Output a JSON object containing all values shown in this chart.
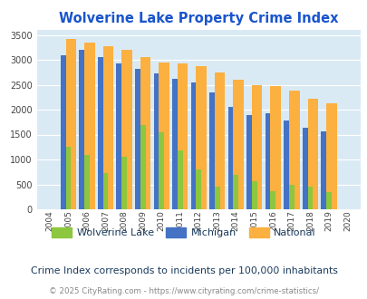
{
  "title": "Wolverine Lake Property Crime Index",
  "years": [
    2004,
    2005,
    2006,
    2007,
    2008,
    2009,
    2010,
    2011,
    2012,
    2013,
    2014,
    2015,
    2016,
    2017,
    2018,
    2019,
    2020
  ],
  "wolverine_lake": [
    0,
    1250,
    1100,
    720,
    1060,
    1700,
    1550,
    1180,
    800,
    450,
    700,
    570,
    370,
    490,
    460,
    340,
    0
  ],
  "michigan": [
    0,
    3100,
    3200,
    3050,
    2930,
    2820,
    2720,
    2620,
    2540,
    2340,
    2050,
    1900,
    1930,
    1790,
    1640,
    1570,
    0
  ],
  "national": [
    0,
    3420,
    3340,
    3270,
    3200,
    3050,
    2950,
    2920,
    2870,
    2740,
    2600,
    2500,
    2480,
    2390,
    2210,
    2120,
    0
  ],
  "bar_width": 0.28,
  "ylim": [
    0,
    3600
  ],
  "yticks": [
    0,
    500,
    1000,
    1500,
    2000,
    2500,
    3000,
    3500
  ],
  "color_wolverine": "#8dc63f",
  "color_michigan": "#4472c4",
  "color_national": "#fbb040",
  "bg_color": "#daeaf5",
  "grid_color": "#ffffff",
  "title_color": "#1a55cc",
  "legend_text_color": "#1a3a5c",
  "subtitle_color": "#1a3a5c",
  "footer_color": "#888888",
  "footer_url_color": "#4472c4",
  "footer_text": "© 2025 CityRating.com - ",
  "footer_url": "https://www.cityrating.com/crime-statistics/",
  "subtitle_text": "Crime Index corresponds to incidents per 100,000 inhabitants"
}
